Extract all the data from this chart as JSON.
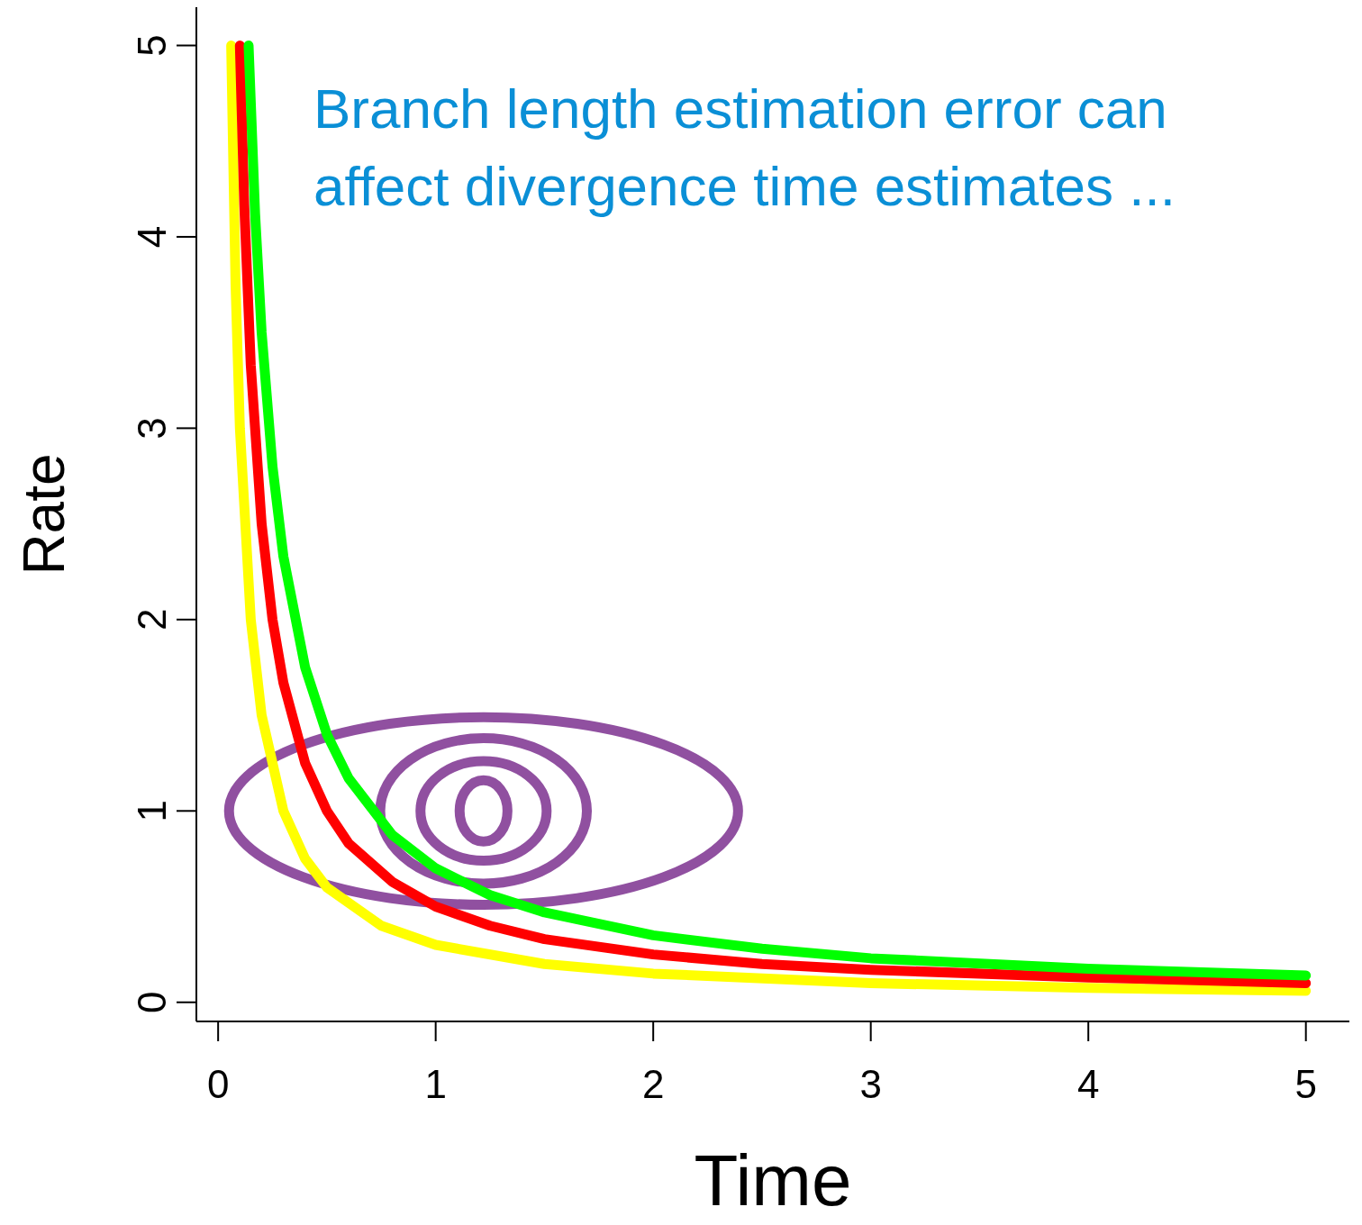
{
  "chart_data": {
    "type": "line",
    "xlabel": "Time",
    "ylabel": "Rate",
    "annotations": [
      "Branch length estimation error can affect divergence time estimates ..."
    ],
    "xlim": [
      -0.1,
      5.2
    ],
    "ylim": [
      -0.1,
      5.2
    ],
    "xticks": [
      0,
      1,
      2,
      3,
      4,
      5
    ],
    "yticks": [
      0,
      1,
      2,
      3,
      4,
      5
    ],
    "grid": false,
    "legend": false,
    "marker": "none",
    "series": [
      {
        "type": "line",
        "color": "#ffff00",
        "x": [
          0.06,
          0.08,
          0.1,
          0.15,
          0.2,
          0.3,
          0.4,
          0.5,
          0.75,
          1,
          1.5,
          2,
          3,
          4,
          5
        ],
        "values": [
          5,
          3.75,
          3,
          2,
          1.5,
          1,
          0.75,
          0.6,
          0.4,
          0.3,
          0.2,
          0.15,
          0.1,
          0.075,
          0.06
        ]
      },
      {
        "type": "line",
        "color": "#ff0000",
        "x": [
          0.1,
          0.12,
          0.15,
          0.2,
          0.25,
          0.3,
          0.4,
          0.5,
          0.6,
          0.8,
          1,
          1.25,
          1.5,
          2,
          2.5,
          3,
          4,
          5
        ],
        "values": [
          5,
          4.17,
          3.33,
          2.5,
          2,
          1.67,
          1.25,
          1,
          0.83,
          0.63,
          0.5,
          0.4,
          0.33,
          0.25,
          0.2,
          0.17,
          0.13,
          0.1
        ]
      },
      {
        "type": "line",
        "color": "#00ff00",
        "x": [
          0.14,
          0.17,
          0.2,
          0.25,
          0.3,
          0.4,
          0.5,
          0.6,
          0.8,
          1,
          1.25,
          1.5,
          2,
          2.5,
          3,
          4,
          5
        ],
        "values": [
          5,
          4.12,
          3.5,
          2.8,
          2.33,
          1.75,
          1.4,
          1.17,
          0.875,
          0.7,
          0.56,
          0.47,
          0.35,
          0.28,
          0.23,
          0.175,
          0.14
        ]
      }
    ]
  }
}
